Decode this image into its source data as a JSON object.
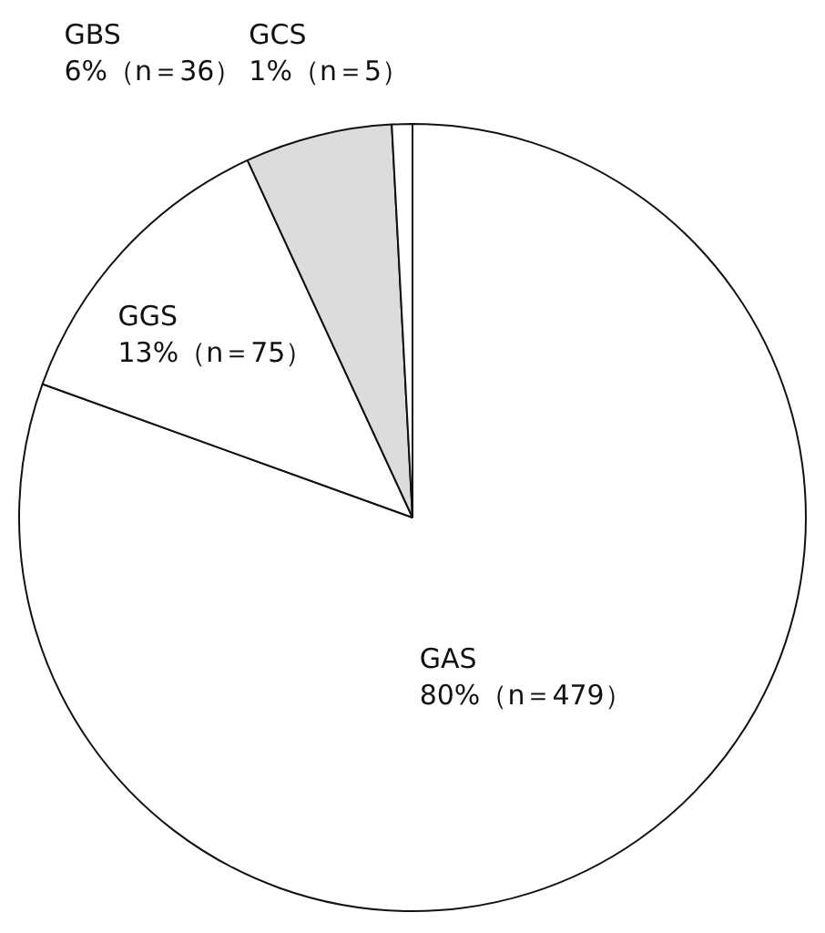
{
  "chart_data": {
    "type": "pie",
    "categories": [
      "GAS",
      "GGS",
      "GBS",
      "GCS"
    ],
    "values": [
      479,
      75,
      36,
      5
    ],
    "value_labels": [
      "80%（n＝479）",
      "13%（n＝75）",
      "6%（n＝36）",
      "1%（n＝5）"
    ],
    "colors": [
      "#ffffff",
      "#ffffff",
      "#dcdcdc",
      "#ffffff"
    ],
    "legend": false
  }
}
